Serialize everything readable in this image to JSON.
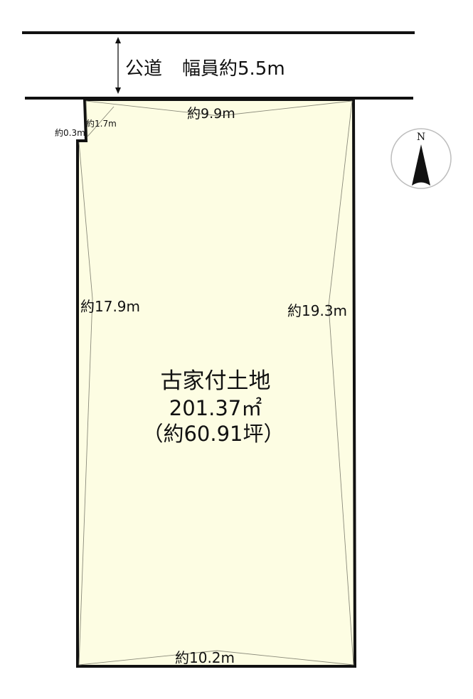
{
  "road": {
    "label": "公道",
    "width_label": "幅員約5.5m"
  },
  "dimensions": {
    "top": "約9.9m",
    "corner_diag": "約1.7m",
    "corner_notch": "約0.3m",
    "left": "約17.9m",
    "right": "約19.3m",
    "bottom": "約10.2m"
  },
  "lot": {
    "title": "古家付土地",
    "area": "201.37㎡",
    "area_tsubo": "（約60.91坪）"
  },
  "compass": {
    "north_label": "N"
  },
  "colors": {
    "lot_fill": "#fdfde3",
    "boundary": "#111111",
    "guide": "#8a8a7a"
  }
}
